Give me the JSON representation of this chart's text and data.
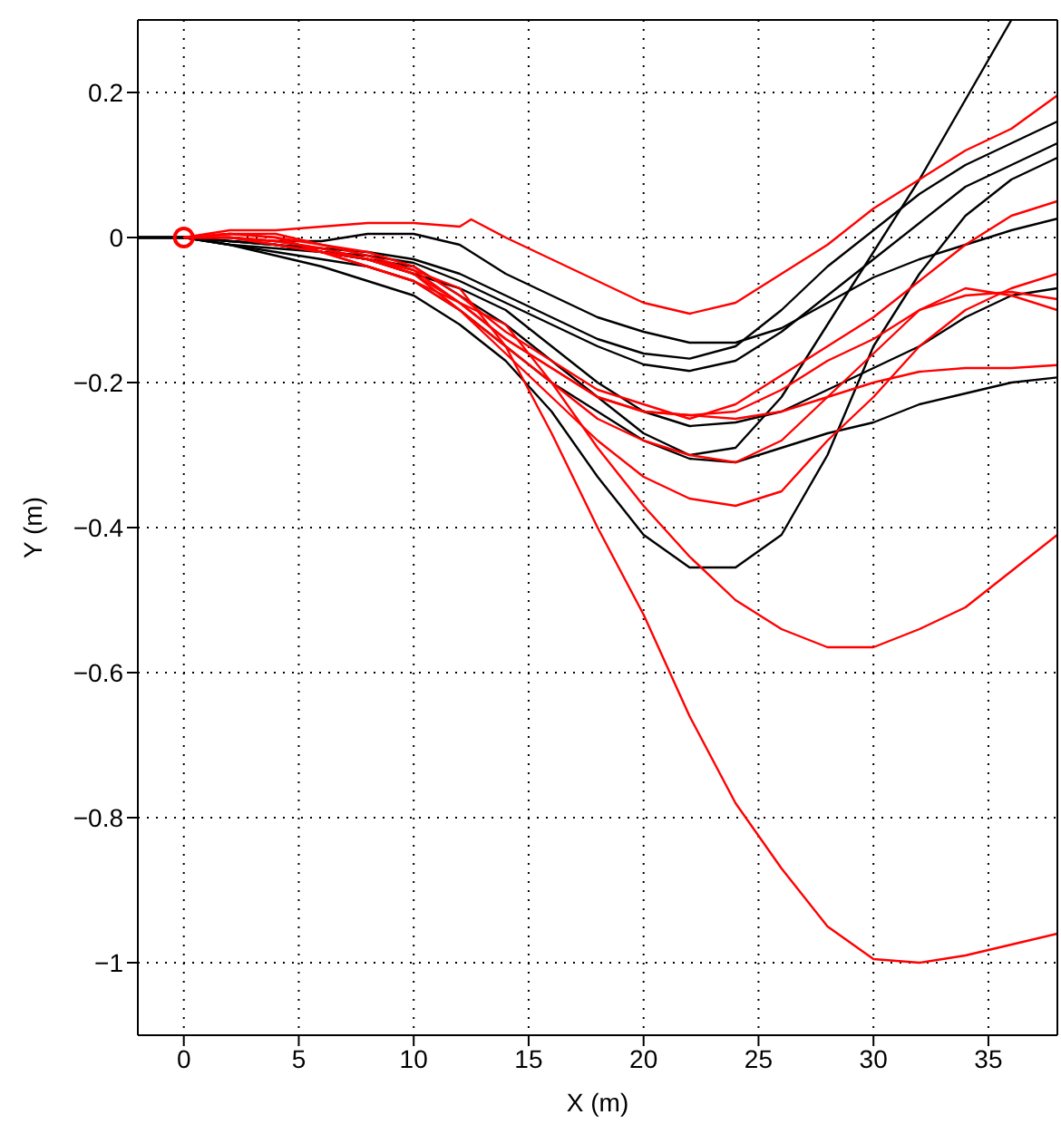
{
  "chart_data": {
    "type": "line",
    "xlabel": "X (m)",
    "ylabel": "Y (m)",
    "xlim": [
      -2,
      38
    ],
    "xticks": [
      0,
      5,
      10,
      15,
      20,
      25,
      30,
      35
    ],
    "ylim": [
      -1.1,
      0.3
    ],
    "yticks": [
      -1,
      -0.8,
      -0.6,
      -0.4,
      -0.2,
      0,
      0.2
    ],
    "grid": true,
    "marker": "none",
    "line_style": "solid",
    "series": [
      {
        "color": "#000000",
        "x": [
          -2,
          0,
          2,
          4,
          6,
          8,
          10,
          12,
          14,
          16,
          18,
          20,
          22,
          24,
          26,
          28,
          30,
          32,
          34,
          36,
          38
        ],
        "values": [
          0,
          0,
          0,
          -0.005,
          -0.005,
          0.005,
          0.005,
          -0.01,
          -0.05,
          -0.08,
          -0.11,
          -0.13,
          -0.145,
          -0.145,
          -0.125,
          -0.09,
          -0.055,
          -0.03,
          -0.01,
          0.01,
          0.026
        ]
      },
      {
        "color": "#000000",
        "x": [
          -2,
          0,
          2,
          4,
          6,
          8,
          10,
          12,
          14,
          16,
          18,
          20,
          22,
          24,
          26,
          28,
          30,
          32,
          34,
          36,
          38
        ],
        "values": [
          0,
          0,
          -0.005,
          -0.01,
          -0.015,
          -0.02,
          -0.03,
          -0.05,
          -0.08,
          -0.11,
          -0.14,
          -0.16,
          -0.167,
          -0.15,
          -0.1,
          -0.04,
          0.01,
          0.06,
          0.1,
          0.13,
          0.16
        ]
      },
      {
        "color": "#000000",
        "x": [
          -2,
          0,
          2,
          4,
          6,
          8,
          10,
          12,
          14,
          16,
          18,
          20,
          22,
          24,
          26,
          28,
          30,
          32,
          34,
          36,
          38
        ],
        "values": [
          0,
          0,
          -0.005,
          -0.01,
          -0.02,
          -0.025,
          -0.035,
          -0.06,
          -0.09,
          -0.12,
          -0.15,
          -0.175,
          -0.184,
          -0.17,
          -0.13,
          -0.08,
          -0.03,
          0.02,
          0.07,
          0.1,
          0.13
        ]
      },
      {
        "color": "#000000",
        "x": [
          -2,
          0,
          2,
          4,
          6,
          8,
          10,
          12,
          14,
          16,
          18,
          20,
          22,
          24,
          26,
          28,
          30,
          32,
          34,
          36
        ],
        "values": [
          0,
          0,
          -0.01,
          -0.015,
          -0.02,
          -0.03,
          -0.04,
          -0.08,
          -0.12,
          -0.17,
          -0.22,
          -0.27,
          -0.3,
          -0.29,
          -0.22,
          -0.12,
          -0.02,
          0.08,
          0.19,
          0.3
        ]
      },
      {
        "color": "#000000",
        "x": [
          -2,
          0,
          2,
          4,
          6,
          8,
          10,
          12,
          14,
          16,
          18,
          20,
          22,
          24,
          26,
          28,
          30,
          32,
          34,
          36,
          38
        ],
        "values": [
          0,
          0,
          -0.01,
          -0.02,
          -0.03,
          -0.04,
          -0.06,
          -0.1,
          -0.15,
          -0.2,
          -0.24,
          -0.28,
          -0.305,
          -0.31,
          -0.29,
          -0.27,
          -0.255,
          -0.23,
          -0.215,
          -0.2,
          -0.193
        ]
      },
      {
        "color": "#000000",
        "x": [
          -2,
          0,
          2,
          4,
          6,
          8,
          10,
          12,
          14,
          16,
          18,
          20,
          22,
          24,
          26,
          28,
          30,
          32,
          34,
          36,
          38
        ],
        "values": [
          0,
          0,
          -0.01,
          -0.025,
          -0.04,
          -0.06,
          -0.08,
          -0.12,
          -0.17,
          -0.24,
          -0.33,
          -0.41,
          -0.455,
          -0.455,
          -0.41,
          -0.3,
          -0.15,
          -0.05,
          0.03,
          0.08,
          0.11
        ]
      },
      {
        "color": "#000000",
        "x": [
          -2,
          0,
          2,
          4,
          6,
          8,
          10,
          12,
          14,
          16,
          18,
          20,
          22,
          24,
          26,
          28,
          30,
          32,
          34,
          36,
          38
        ],
        "values": [
          0,
          0,
          -0.005,
          -0.01,
          -0.02,
          -0.03,
          -0.05,
          -0.07,
          -0.1,
          -0.15,
          -0.2,
          -0.24,
          -0.26,
          -0.255,
          -0.24,
          -0.21,
          -0.18,
          -0.15,
          -0.11,
          -0.08,
          -0.07
        ]
      },
      {
        "color": "#ff0000",
        "x": [
          0,
          2,
          4,
          6,
          8,
          10,
          12,
          12.5,
          14,
          16,
          18,
          20,
          22,
          24,
          26,
          28,
          30,
          32,
          34,
          36,
          38
        ],
        "values": [
          0,
          0.01,
          0.01,
          0.015,
          0.02,
          0.02,
          0.015,
          0.025,
          0,
          -0.03,
          -0.06,
          -0.09,
          -0.105,
          -0.09,
          -0.05,
          -0.01,
          0.04,
          0.08,
          0.12,
          0.15,
          0.196
        ]
      },
      {
        "color": "#ff0000",
        "x": [
          0,
          2,
          4,
          6,
          8,
          10,
          12,
          14,
          16,
          18,
          20,
          22,
          24,
          26,
          28,
          30,
          32,
          34,
          36,
          38
        ],
        "values": [
          0,
          0.005,
          0.005,
          -0.01,
          -0.02,
          -0.04,
          -0.08,
          -0.13,
          -0.17,
          -0.21,
          -0.23,
          -0.25,
          -0.23,
          -0.19,
          -0.15,
          -0.11,
          -0.06,
          -0.01,
          0.03,
          0.05
        ]
      },
      {
        "color": "#ff0000",
        "x": [
          0,
          2,
          4,
          6,
          8,
          10,
          12,
          14,
          16,
          18,
          20,
          22,
          24,
          26,
          28,
          30,
          32,
          34,
          36,
          38
        ],
        "values": [
          0,
          0.005,
          0,
          -0.01,
          -0.025,
          -0.045,
          -0.09,
          -0.14,
          -0.18,
          -0.22,
          -0.24,
          -0.245,
          -0.24,
          -0.21,
          -0.17,
          -0.14,
          -0.1,
          -0.08,
          -0.075,
          -0.085
        ]
      },
      {
        "color": "#ff0000",
        "x": [
          0,
          2,
          4,
          6,
          8,
          10,
          12,
          14,
          16,
          18,
          20,
          22,
          24,
          26,
          28,
          30,
          32,
          34,
          36,
          38
        ],
        "values": [
          0,
          0,
          -0.005,
          -0.015,
          -0.03,
          -0.05,
          -0.1,
          -0.15,
          -0.2,
          -0.25,
          -0.28,
          -0.3,
          -0.31,
          -0.28,
          -0.22,
          -0.16,
          -0.1,
          -0.07,
          -0.08,
          -0.1
        ]
      },
      {
        "color": "#ff0000",
        "x": [
          0,
          2,
          4,
          6,
          8,
          10,
          12,
          14,
          16,
          18,
          20,
          22,
          24,
          26,
          28,
          30,
          32,
          34,
          36,
          38
        ],
        "values": [
          0,
          0.005,
          0,
          -0.02,
          -0.03,
          -0.05,
          -0.09,
          -0.14,
          -0.18,
          -0.22,
          -0.24,
          -0.245,
          -0.25,
          -0.24,
          -0.22,
          -0.2,
          -0.185,
          -0.18,
          -0.18,
          -0.176
        ]
      },
      {
        "color": "#ff0000",
        "x": [
          0,
          2,
          4,
          6,
          8,
          10,
          12,
          14,
          16,
          18,
          20,
          22,
          24,
          26,
          28,
          30,
          32,
          34,
          36,
          38
        ],
        "values": [
          0,
          0,
          -0.01,
          -0.02,
          -0.04,
          -0.06,
          -0.1,
          -0.16,
          -0.22,
          -0.28,
          -0.33,
          -0.36,
          -0.37,
          -0.35,
          -0.28,
          -0.22,
          -0.15,
          -0.1,
          -0.07,
          -0.05
        ]
      },
      {
        "color": "#ff0000",
        "x": [
          0,
          2,
          4,
          6,
          8,
          10,
          12,
          14,
          16,
          18,
          20,
          22,
          24,
          26,
          28,
          30,
          32,
          34,
          36,
          38
        ],
        "values": [
          0,
          0,
          -0.01,
          -0.02,
          -0.04,
          -0.06,
          -0.09,
          -0.12,
          -0.2,
          -0.29,
          -0.37,
          -0.44,
          -0.5,
          -0.54,
          -0.565,
          -0.565,
          -0.54,
          -0.51,
          -0.46,
          -0.41
        ]
      },
      {
        "color": "#ff0000",
        "x": [
          0,
          2,
          4,
          6,
          8,
          10,
          12,
          14,
          16,
          18,
          20,
          22,
          24,
          26,
          28,
          30,
          32,
          34,
          36,
          38
        ],
        "values": [
          0,
          0,
          -0.005,
          -0.015,
          -0.03,
          -0.045,
          -0.07,
          -0.15,
          -0.27,
          -0.4,
          -0.52,
          -0.66,
          -0.78,
          -0.87,
          -0.95,
          -0.995,
          -1,
          -0.99,
          -0.975,
          -0.96
        ]
      },
      {
        "type": "scatter",
        "marker": "circle",
        "color": "#ff0000",
        "x": [
          0
        ],
        "values": [
          0
        ]
      }
    ]
  }
}
